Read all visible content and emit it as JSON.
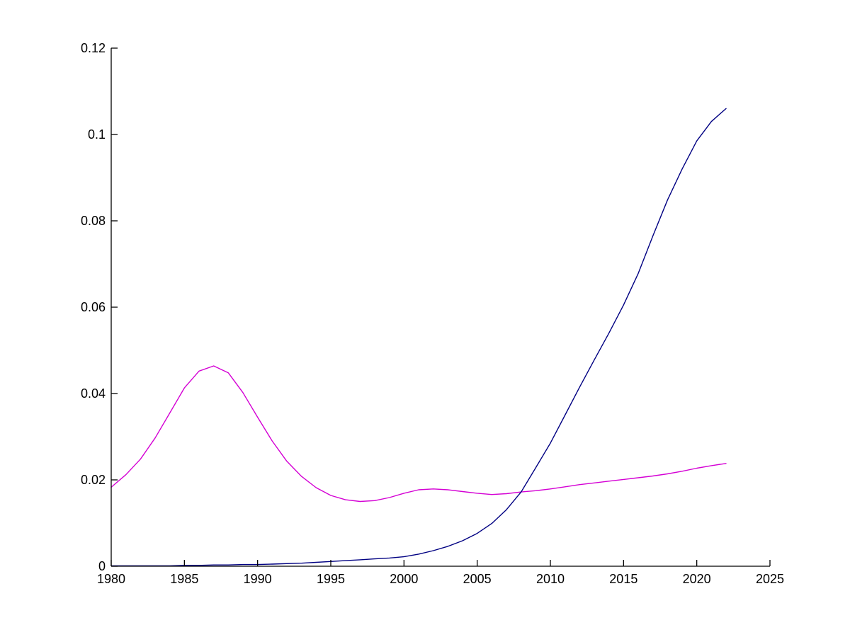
{
  "figure": {
    "background": "#ffffff",
    "axis_color": "#000000",
    "tick_label_color": "#000000"
  },
  "chart_data": {
    "type": "line",
    "title": "",
    "xlabel": "",
    "ylabel": "",
    "grid": false,
    "legend": "none",
    "xlim": [
      1980,
      2025
    ],
    "ylim": [
      0,
      0.12
    ],
    "x_ticks": [
      1980,
      1985,
      1990,
      1995,
      2000,
      2005,
      2010,
      2015,
      2020,
      2025
    ],
    "x_tick_labels": [
      "1980",
      "1985",
      "1990",
      "1995",
      "2000",
      "2005",
      "2010",
      "2015",
      "2020",
      "2025"
    ],
    "y_ticks": [
      0,
      0.02,
      0.04,
      0.06,
      0.08,
      0.1,
      0.12
    ],
    "y_tick_labels": [
      "0",
      "0.02",
      "0.04",
      "0.06",
      "0.08",
      "0.1",
      "0.12"
    ],
    "x": [
      1980,
      1981,
      1982,
      1983,
      1984,
      1985,
      1986,
      1987,
      1988,
      1989,
      1990,
      1991,
      1992,
      1993,
      1994,
      1995,
      1996,
      1997,
      1998,
      1999,
      2000,
      2001,
      2002,
      2003,
      2004,
      2005,
      2006,
      2007,
      2008,
      2009,
      2010,
      2011,
      2012,
      2013,
      2014,
      2015,
      2016,
      2017,
      2018,
      2019,
      2020,
      2021,
      2022
    ],
    "series": [
      {
        "name": "magenta-series",
        "color": "#D400D4",
        "values": [
          0.0183,
          0.0212,
          0.0248,
          0.0297,
          0.0355,
          0.0413,
          0.0452,
          0.0464,
          0.0448,
          0.0402,
          0.0345,
          0.029,
          0.0243,
          0.0208,
          0.0182,
          0.0164,
          0.0154,
          0.015,
          0.0152,
          0.0159,
          0.0169,
          0.0177,
          0.0179,
          0.0177,
          0.0173,
          0.0169,
          0.0166,
          0.0168,
          0.0172,
          0.0175,
          0.0179,
          0.0184,
          0.0189,
          0.0193,
          0.0197,
          0.0201,
          0.0205,
          0.0209,
          0.0214,
          0.022,
          0.0227,
          0.0233,
          0.0238
        ]
      },
      {
        "name": "blue-series",
        "color": "#000082",
        "values": [
          0.0001,
          0.0001,
          0.0001,
          0.0001,
          0.0001,
          0.0002,
          0.0002,
          0.0003,
          0.0003,
          0.0004,
          0.0004,
          0.0005,
          0.0006,
          0.0007,
          0.0009,
          0.0011,
          0.0013,
          0.0015,
          0.0017,
          0.0019,
          0.0022,
          0.0028,
          0.0036,
          0.0046,
          0.0059,
          0.0076,
          0.0099,
          0.0131,
          0.0172,
          0.0228,
          0.0285,
          0.035,
          0.0415,
          0.0478,
          0.054,
          0.0605,
          0.0678,
          0.0765,
          0.0848,
          0.092,
          0.0985,
          0.103,
          0.106
        ]
      }
    ]
  }
}
